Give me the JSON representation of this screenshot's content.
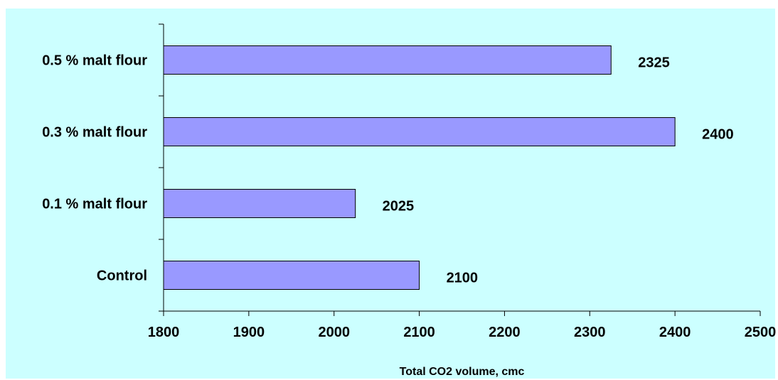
{
  "chart_data": {
    "type": "bar",
    "orientation": "horizontal",
    "categories": [
      "0.5 % malt flour",
      "0.3 % malt flour",
      "0.1 % malt flour",
      "Control"
    ],
    "values": [
      2325,
      2400,
      2025,
      2100
    ],
    "data_labels": [
      "2325",
      "2400",
      "2025",
      "2100"
    ],
    "xlabel": "Total CO2 volume, cmc",
    "ylabel": "",
    "title": "",
    "xlim": [
      1800,
      2500
    ],
    "xticks": [
      "1800",
      "1900",
      "2000",
      "2100",
      "2200",
      "2300",
      "2400",
      "2500"
    ],
    "grid": false,
    "legend": "none",
    "bar_color": "#9999ff",
    "background_color": "#ccffff"
  }
}
